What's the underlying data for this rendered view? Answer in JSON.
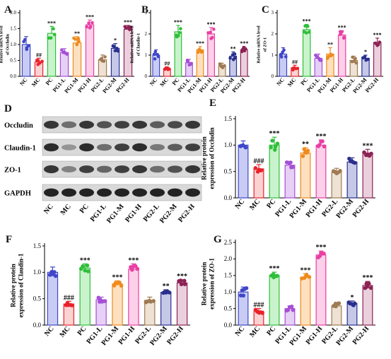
{
  "colors": {
    "NC": "#3f46c8",
    "MC": "#e8232b",
    "PC": "#2fbf3a",
    "PG1-L": "#a64fd6",
    "PG1-M": "#f08a1c",
    "PG1-H": "#e93fa2",
    "PG2-L": "#a07a52",
    "PG2-M": "#2a2f8f",
    "PG2-H": "#8c2255"
  },
  "fills": {
    "NC": "#c8ccf4",
    "MC": "#fbd2d2",
    "PC": "#c9f3cc",
    "PG1-L": "#e6d0f5",
    "PG1-M": "#fde0bf",
    "PG1-H": "#fbd0e8",
    "PG2-L": "#ede2d4",
    "PG2-M": "#c6c8e8",
    "PG2-H": "#ead0dc"
  },
  "blot": {
    "label": "D",
    "rows": [
      "Occludin",
      "Claudin-1",
      "ZO-1",
      "GAPDH"
    ],
    "lanes": [
      "NC",
      "MC",
      "PC",
      "PG1-L",
      "PG1-M",
      "PG1-H",
      "PG2-L",
      "PG2-M",
      "PG2-H"
    ],
    "intensity": [
      [
        0.85,
        0.55,
        0.85,
        0.7,
        0.8,
        0.85,
        0.65,
        0.75,
        0.85
      ],
      [
        0.9,
        0.35,
        0.9,
        0.55,
        0.8,
        0.9,
        0.5,
        0.65,
        0.8
      ],
      [
        0.85,
        0.45,
        0.8,
        0.6,
        0.8,
        0.85,
        0.55,
        0.7,
        0.85
      ],
      [
        0.95,
        0.95,
        0.95,
        0.95,
        0.95,
        0.95,
        0.95,
        0.95,
        0.95
      ]
    ]
  },
  "chart_data": [
    {
      "panel": "A",
      "type": "bar",
      "categories": [
        "NC",
        "MC",
        "PC",
        "PG1-L",
        "PG1-M",
        "PG1-H",
        "PG2-L",
        "PG2-M",
        "PG2-H"
      ],
      "values": [
        1.0,
        0.45,
        1.35,
        0.75,
        1.05,
        1.62,
        0.52,
        0.88,
        1.48
      ],
      "errors": [
        0.25,
        0.12,
        0.22,
        0.12,
        0.2,
        0.15,
        0.15,
        0.15,
        0.12
      ],
      "significance": [
        "",
        "##",
        "***",
        "",
        "**",
        "***",
        "",
        "*",
        "***"
      ],
      "ylabel": "Relative mRNA level\nof Occludin",
      "ylim": [
        0,
        2.0
      ],
      "yticks": [
        "0.0",
        "0.5",
        "1.0",
        "1.5",
        "2.0"
      ]
    },
    {
      "panel": "B",
      "type": "bar",
      "categories": [
        "NC",
        "MC",
        "PC",
        "PG1-L",
        "PG1-M",
        "PG1-H",
        "PG2-L",
        "PG2-M",
        "PG2-H"
      ],
      "values": [
        1.0,
        0.35,
        2.1,
        0.65,
        1.25,
        2.0,
        0.5,
        0.95,
        1.25
      ],
      "errors": [
        0.25,
        0.1,
        0.3,
        0.15,
        0.15,
        0.3,
        0.12,
        0.2,
        0.15
      ],
      "significance": [
        "",
        "##",
        "***",
        "",
        "***",
        "***",
        "",
        "**",
        "***"
      ],
      "ylabel": "Relative mRNA level\nof Claudin-1",
      "ylim": [
        0,
        3.0
      ],
      "yticks": [
        "0",
        "1",
        "2",
        "3"
      ]
    },
    {
      "panel": "C",
      "type": "bar",
      "categories": [
        "NC",
        "MC",
        "PC",
        "PG1-L",
        "PG1-M",
        "PG1-H",
        "PG2-L",
        "PG2-M",
        "PG2-H"
      ],
      "values": [
        1.05,
        0.4,
        2.2,
        0.85,
        1.05,
        1.95,
        0.75,
        0.85,
        1.6
      ],
      "errors": [
        0.3,
        0.12,
        0.25,
        0.2,
        0.3,
        0.2,
        0.2,
        0.15,
        0.2
      ],
      "significance": [
        "",
        "##",
        "***",
        "",
        "**",
        "***",
        "",
        "*",
        "***"
      ],
      "ylabel": "Relative mRNA level\nof ZO-1",
      "ylim": [
        0,
        3.0
      ],
      "yticks": [
        "0",
        "1",
        "2",
        "3"
      ]
    },
    {
      "panel": "E",
      "type": "bar",
      "categories": [
        "NC",
        "MC",
        "PC",
        "PG1-L",
        "PG1-M",
        "PG1-H",
        "PG2-L",
        "PG2-M",
        "PG2-H"
      ],
      "values": [
        1.0,
        0.55,
        1.0,
        0.62,
        0.85,
        1.0,
        0.48,
        0.68,
        0.85
      ],
      "errors": [
        0.08,
        0.08,
        0.15,
        0.07,
        0.1,
        0.1,
        0.08,
        0.08,
        0.07
      ],
      "significance": [
        "",
        "###",
        "***",
        "",
        "**",
        "***",
        "",
        "",
        "***"
      ],
      "ylabel": "Relative protein\nexpression of Occludin",
      "ylim": [
        0,
        1.5
      ],
      "yticks": [
        "0.0",
        "0.5",
        "1.0",
        "1.5"
      ]
    },
    {
      "panel": "F",
      "type": "bar",
      "categories": [
        "NC",
        "MC",
        "PC",
        "PG1-L",
        "PG1-M",
        "PG1-H",
        "PG2-L",
        "PG2-M",
        "PG2-H"
      ],
      "values": [
        1.0,
        0.4,
        1.08,
        0.48,
        0.78,
        1.06,
        0.47,
        0.62,
        0.8
      ],
      "errors": [
        0.1,
        0.05,
        0.08,
        0.05,
        0.06,
        0.1,
        0.06,
        0.05,
        0.06
      ],
      "significance": [
        "",
        "###",
        "***",
        "",
        "***",
        "***",
        "",
        "**",
        "***"
      ],
      "ylabel": "Relative protein\nexpression of Claudin-1",
      "ylim": [
        0,
        1.5
      ],
      "yticks": [
        "0.0",
        "0.5",
        "1.0",
        "1.5"
      ]
    },
    {
      "panel": "G",
      "type": "bar",
      "categories": [
        "NC",
        "MC",
        "PC",
        "PG1-L",
        "PG1-M",
        "PG1-H",
        "PG2-L",
        "PG2-M",
        "PG2-H"
      ],
      "values": [
        1.0,
        0.42,
        1.5,
        0.5,
        1.45,
        2.12,
        0.58,
        0.65,
        1.2
      ],
      "errors": [
        0.15,
        0.08,
        0.1,
        0.08,
        0.1,
        0.12,
        0.1,
        0.08,
        0.12
      ],
      "significance": [
        "",
        "###",
        "***",
        "",
        "***",
        "***",
        "",
        "*",
        "***"
      ],
      "ylabel": "Relative protein\nexpression of ZO-1",
      "ylim": [
        0,
        2.5
      ],
      "yticks": [
        "0.0",
        "0.5",
        "1.0",
        "1.5",
        "2.0",
        "2.5"
      ]
    }
  ]
}
